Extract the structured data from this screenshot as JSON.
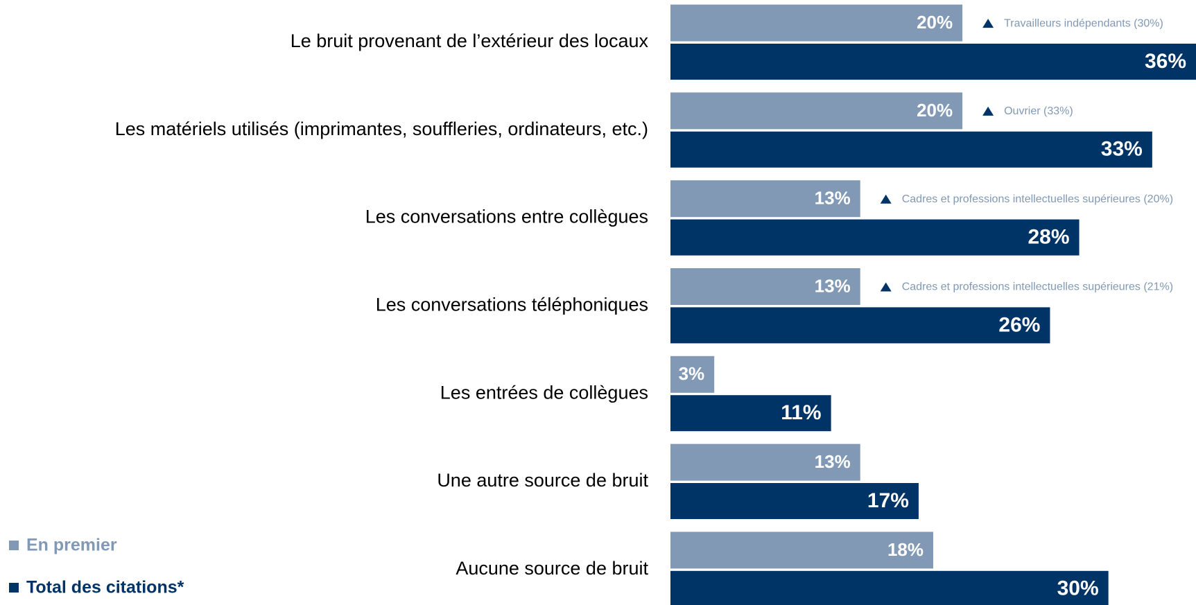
{
  "chart_data": {
    "type": "bar",
    "orientation": "horizontal",
    "categories": [
      "Le bruit provenant de l’extérieur des locaux",
      "Les matériels utilisés (imprimantes, souffleries, ordinateurs, etc.)",
      "Les conversations entre collègues",
      "Les conversations téléphoniques",
      "Les entrées de collègues",
      "Une autre source de bruit",
      "Aucune source de bruit"
    ],
    "series": [
      {
        "name": "En premier",
        "color": "#8199b4",
        "values": [
          20,
          20,
          13,
          13,
          3,
          13,
          18
        ],
        "value_labels": [
          "20%",
          "20%",
          "13%",
          "13%",
          "3%",
          "13%",
          "18%"
        ]
      },
      {
        "name": "Total des citations*",
        "color": "#003366",
        "values": [
          36,
          33,
          28,
          26,
          11,
          17,
          30
        ],
        "value_labels": [
          "36%",
          "33%",
          "28%",
          "26%",
          "11%",
          "17%",
          "30%"
        ]
      }
    ],
    "annotations": [
      "Travailleurs indépendants (30%)",
      "Ouvrier (33%)",
      "Cadres et professions intellectuelles supérieures (20%)",
      "Cadres et professions intellectuelles supérieures (21%)",
      null,
      null,
      null
    ],
    "legend": "bottom-left"
  }
}
